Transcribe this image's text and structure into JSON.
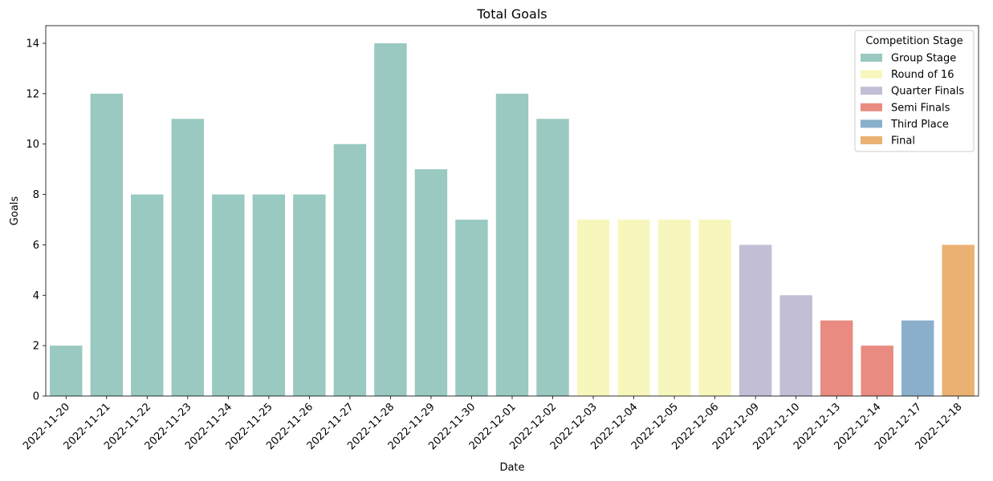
{
  "chart_data": {
    "type": "bar",
    "title": "Total Goals",
    "xlabel": "Date",
    "ylabel": "Goals",
    "ylim": [
      0,
      14.7
    ],
    "yticks": [
      0,
      2,
      4,
      6,
      8,
      10,
      12,
      14
    ],
    "grid": false,
    "legend": {
      "title": "Competition Stage",
      "placement": "top-right",
      "entries": [
        {
          "name": "Group Stage",
          "color": "#99c9c1"
        },
        {
          "name": "Round of 16",
          "color": "#f7f7bd"
        },
        {
          "name": "Quarter Finals",
          "color": "#c2bed6"
        },
        {
          "name": "Semi Finals",
          "color": "#e98b80"
        },
        {
          "name": "Third Place",
          "color": "#8aafcb"
        },
        {
          "name": "Final",
          "color": "#ebb172"
        }
      ]
    },
    "categories": [
      "2022-11-20",
      "2022-11-21",
      "2022-11-22",
      "2022-11-23",
      "2022-11-24",
      "2022-11-25",
      "2022-11-26",
      "2022-11-27",
      "2022-11-28",
      "2022-11-29",
      "2022-11-30",
      "2022-12-01",
      "2022-12-02",
      "2022-12-03",
      "2022-12-04",
      "2022-12-05",
      "2022-12-06",
      "2022-12-09",
      "2022-12-10",
      "2022-12-13",
      "2022-12-14",
      "2022-12-17",
      "2022-12-18"
    ],
    "values": [
      2,
      12,
      8,
      11,
      8,
      8,
      8,
      10,
      14,
      9,
      7,
      12,
      11,
      7,
      7,
      7,
      7,
      6,
      4,
      3,
      2,
      3,
      6
    ],
    "stages": [
      "Group Stage",
      "Group Stage",
      "Group Stage",
      "Group Stage",
      "Group Stage",
      "Group Stage",
      "Group Stage",
      "Group Stage",
      "Group Stage",
      "Group Stage",
      "Group Stage",
      "Group Stage",
      "Group Stage",
      "Round of 16",
      "Round of 16",
      "Round of 16",
      "Round of 16",
      "Quarter Finals",
      "Quarter Finals",
      "Semi Finals",
      "Semi Finals",
      "Third Place",
      "Final"
    ]
  }
}
